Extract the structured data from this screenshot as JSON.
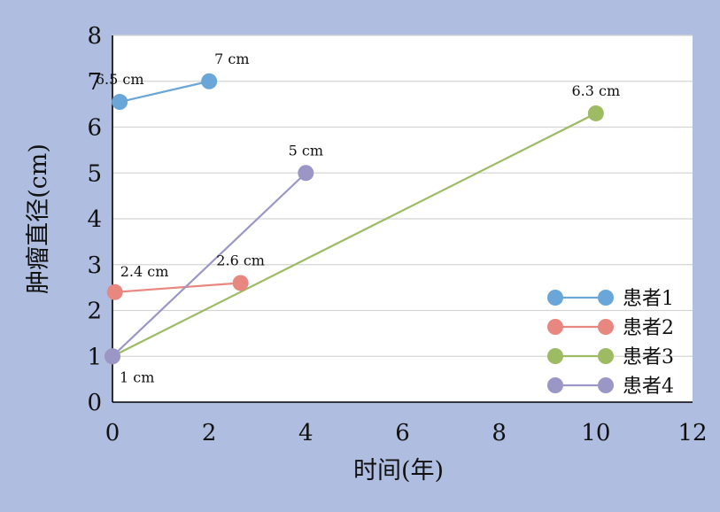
{
  "chart_data": {
    "type": "scatter",
    "xlabel": "时间(年)",
    "ylabel": "肿瘤直径(cm)",
    "xlim": [
      0,
      12
    ],
    "ylim": [
      0,
      8
    ],
    "xticks": [
      0,
      2,
      4,
      6,
      8,
      10,
      12
    ],
    "yticks": [
      0,
      1,
      2,
      3,
      4,
      5,
      6,
      7,
      8
    ],
    "grid": "horizontal",
    "legend_position": "bottom-right",
    "series": [
      {
        "name": "患者1",
        "color": "#6aa6d8",
        "points": [
          {
            "x": 0.15,
            "y": 6.55,
            "label": "6.5 cm",
            "label_pos": "above"
          },
          {
            "x": 2.0,
            "y": 7.0,
            "label": "7 cm",
            "label_pos": "above-right"
          }
        ]
      },
      {
        "name": "患者2",
        "color": "#e8877f",
        "points": [
          {
            "x": 0.05,
            "y": 2.4,
            "label": "2.4 cm",
            "label_pos": "above-right"
          },
          {
            "x": 2.65,
            "y": 2.6,
            "label": "2.6 cm",
            "label_pos": "above"
          }
        ]
      },
      {
        "name": "患者3",
        "color": "#9cbb63",
        "points": [
          {
            "x": 0.0,
            "y": 1.0
          },
          {
            "x": 10.0,
            "y": 6.3,
            "label": "6.3 cm",
            "label_pos": "above"
          }
        ]
      },
      {
        "name": "患者4",
        "color": "#9a96c6",
        "points": [
          {
            "x": 0.0,
            "y": 1.0,
            "label": "1 cm",
            "label_pos": "below-right"
          },
          {
            "x": 4.0,
            "y": 5.0,
            "label": "5 cm",
            "label_pos": "above"
          }
        ]
      }
    ]
  }
}
